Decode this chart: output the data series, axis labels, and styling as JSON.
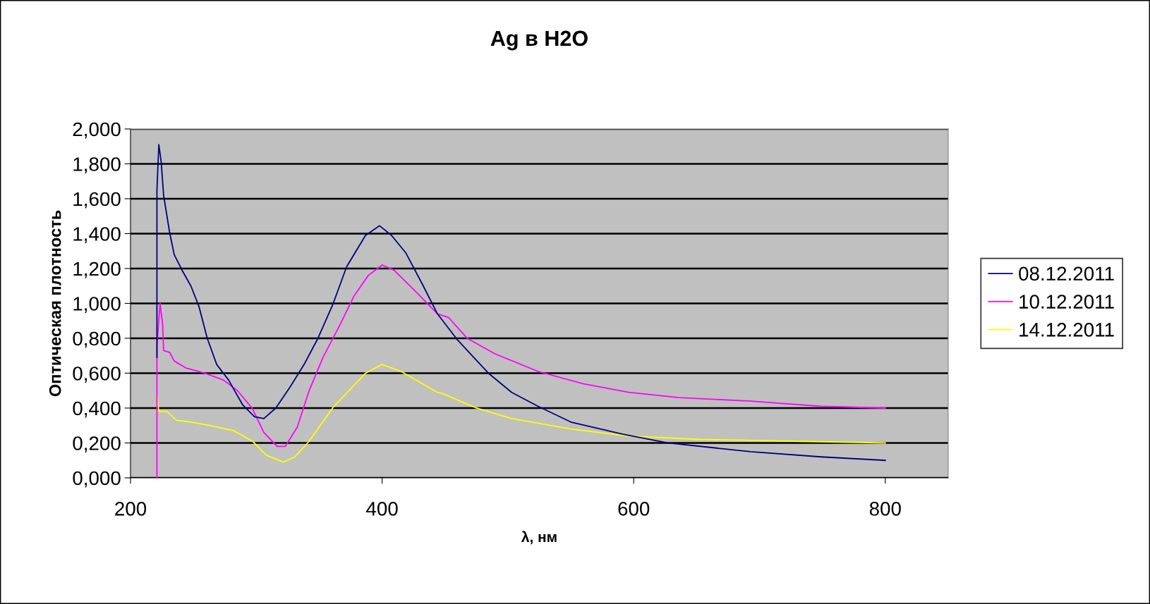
{
  "chart_data": {
    "type": "line",
    "title": "Ag в H2O",
    "xlabel": "λ, нм",
    "ylabel": "Оптическая плотность",
    "xlim": [
      200,
      850
    ],
    "xticks": [
      200,
      400,
      600,
      800
    ],
    "ylim": [
      0,
      2
    ],
    "yticks": [
      {
        "value": 0,
        "label": "0,000"
      },
      {
        "value": 0.2,
        "label": "0,200"
      },
      {
        "value": 0.4,
        "label": "0,400"
      },
      {
        "value": 0.6,
        "label": "0,600"
      },
      {
        "value": 0.8,
        "label": "0,800"
      },
      {
        "value": 1.0,
        "label": "1,000"
      },
      {
        "value": 1.2,
        "label": "1,200"
      },
      {
        "value": 1.4,
        "label": "1,400"
      },
      {
        "value": 1.6,
        "label": "1,600"
      },
      {
        "value": 1.8,
        "label": "1,800"
      },
      {
        "value": 2.0,
        "label": "2,000"
      }
    ],
    "grid": "y",
    "legend": "right",
    "marker": "none",
    "line_style": "solid",
    "series": [
      {
        "name": "08.12.2011",
        "color": "#000080",
        "x": [
          221,
          221,
          222.5,
          224.4,
          226.3,
          231,
          234.7,
          241,
          248,
          254.5,
          261,
          268.5,
          278,
          289,
          298.6,
          306,
          315.5,
          326.8,
          338,
          349,
          360.6,
          371.8,
          386.8,
          398,
          407.5,
          418.8,
          432,
          444,
          460,
          484.5,
          503,
          524,
          550,
          591.5,
          627,
          693,
          749,
          800
        ],
        "values": [
          0.69,
          1.65,
          1.91,
          1.81,
          1.62,
          1.41,
          1.28,
          1.19,
          1.1,
          0.98,
          0.8,
          0.65,
          0.56,
          0.42,
          0.35,
          0.34,
          0.4,
          0.52,
          0.65,
          0.8,
          0.99,
          1.21,
          1.39,
          1.445,
          1.39,
          1.29,
          1.11,
          0.94,
          0.79,
          0.6,
          0.49,
          0.41,
          0.32,
          0.25,
          0.2,
          0.15,
          0.12,
          0.1
        ]
      },
      {
        "name": "10.12.2011",
        "color": "#ff00ff",
        "x": [
          221,
          221,
          223.5,
          225.5,
          226.3,
          231,
          234.7,
          244,
          259,
          274,
          285,
          296.6,
          306,
          316.5,
          323,
          332.5,
          342,
          353,
          366,
          377.5,
          389,
          400,
          409.5,
          426.4,
          444,
          452.7,
          467.6,
          490,
          524,
          559.5,
          596,
          636,
          693,
          749,
          800
        ],
        "values": [
          0,
          0.76,
          1.0,
          0.88,
          0.73,
          0.72,
          0.67,
          0.63,
          0.6,
          0.56,
          0.5,
          0.4,
          0.26,
          0.18,
          0.18,
          0.29,
          0.5,
          0.69,
          0.87,
          1.04,
          1.16,
          1.22,
          1.19,
          1.07,
          0.94,
          0.92,
          0.8,
          0.71,
          0.61,
          0.54,
          0.49,
          0.46,
          0.44,
          0.41,
          0.4
        ]
      },
      {
        "name": "14.12.2011",
        "color": "#ffff00",
        "x": [
          221,
          222.5,
          229,
          236.6,
          248,
          263,
          282,
          297,
          308,
          321.5,
          330.6,
          342,
          360.6,
          386.8,
          400,
          415,
          444,
          449,
          475,
          503,
          550,
          595,
          653,
          727,
          800
        ],
        "values": [
          0.48,
          0.38,
          0.38,
          0.33,
          0.32,
          0.3,
          0.27,
          0.21,
          0.13,
          0.09,
          0.12,
          0.21,
          0.4,
          0.6,
          0.65,
          0.61,
          0.49,
          0.48,
          0.4,
          0.34,
          0.28,
          0.24,
          0.22,
          0.21,
          0.2
        ]
      }
    ]
  }
}
